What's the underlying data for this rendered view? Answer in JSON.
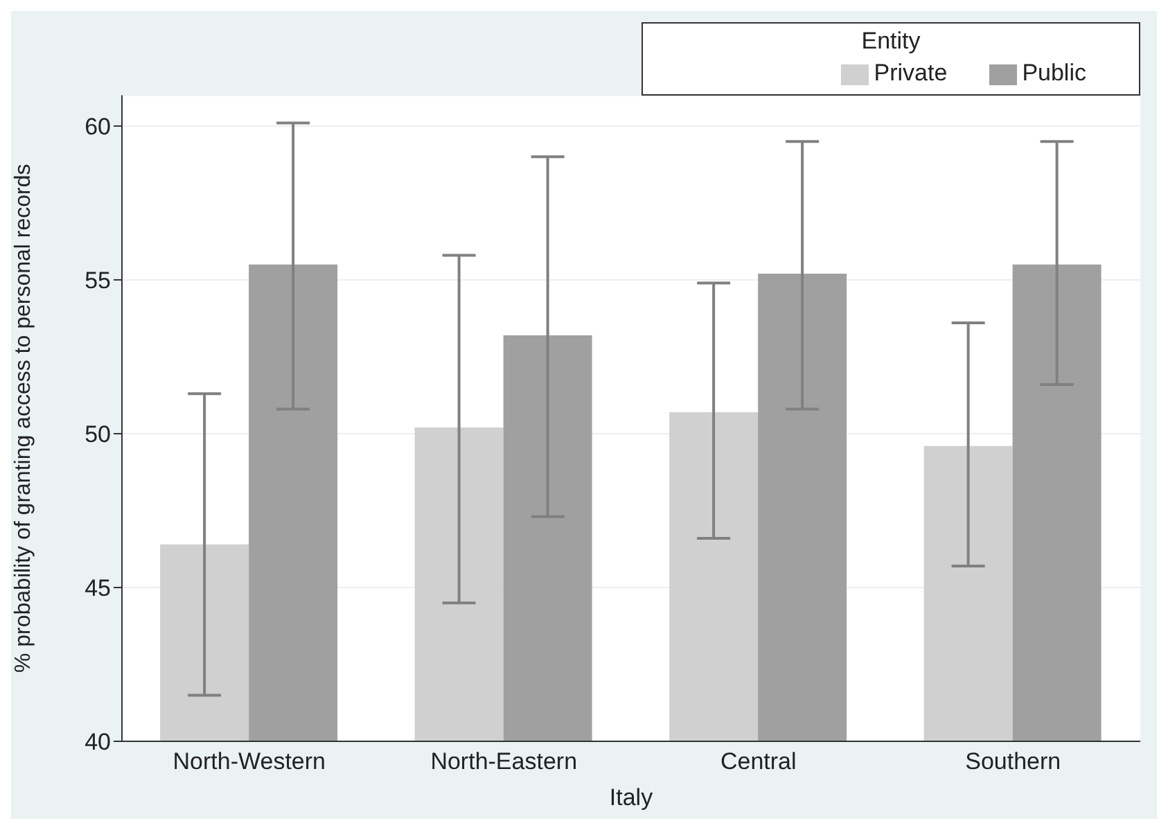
{
  "chart_data": {
    "type": "bar",
    "xlabel": "Italy",
    "ylabel": "% probability of granting access to personal records",
    "legend_title": "Entity",
    "categories": [
      "North-Western",
      "North-Eastern",
      "Central",
      "Southern"
    ],
    "series": [
      {
        "name": "Private",
        "color": "#d0d0d0",
        "values": [
          46.4,
          50.2,
          50.7,
          49.6
        ],
        "errors": [
          [
            41.5,
            51.3
          ],
          [
            44.5,
            55.8
          ],
          [
            46.6,
            54.9
          ],
          [
            45.7,
            53.6
          ]
        ]
      },
      {
        "name": "Public",
        "color": "#a0a0a0",
        "values": [
          55.5,
          53.2,
          55.2,
          55.5
        ],
        "errors": [
          [
            50.8,
            60.1
          ],
          [
            47.3,
            59.0
          ],
          [
            50.8,
            59.5
          ],
          [
            51.6,
            59.5
          ]
        ]
      }
    ],
    "ylim": [
      40,
      61
    ],
    "yticks": [
      40,
      45,
      50,
      55,
      60
    ],
    "grid": "y",
    "legend": "top right"
  }
}
